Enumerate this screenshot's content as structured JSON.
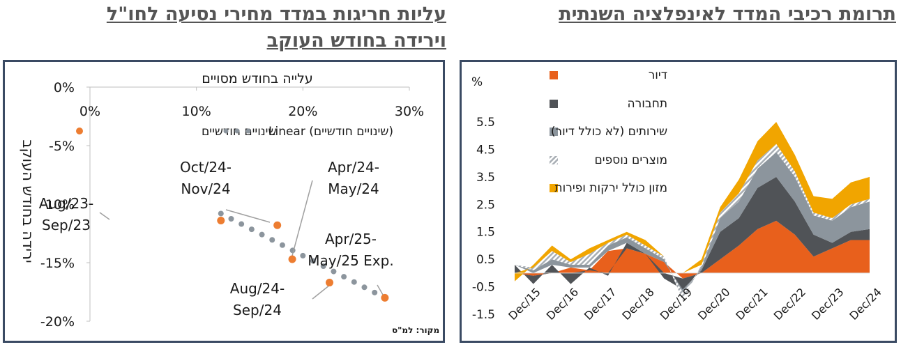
{
  "left_title": "עליות חריגות במדד מחירי  נסיעה לחו\"ל וירידה בחודש העוקב",
  "right_title": "תרומת רכיבי המדד לאינפלציה השנתית",
  "source": "מקור: למ\"ס",
  "chart_data": [
    {
      "type": "scatter",
      "title": "",
      "xlabel": "עלייה בחודש מסויים",
      "ylabel": "ירידה בחודש העוקב",
      "xlim": [
        0,
        30
      ],
      "ylim": [
        -20,
        0
      ],
      "x_ticks": [
        "0%",
        "10%",
        "20%",
        "30%"
      ],
      "x_tick_values": [
        0,
        10,
        20,
        30
      ],
      "y_ticks": [
        "0%",
        "-5%",
        "-10%",
        "-15%",
        "-20%"
      ],
      "y_tick_values": [
        0,
        -5,
        -10,
        -15,
        -20
      ],
      "legend": [
        "שינויים חודשיים",
        "Linear (שינויים חודשיים)"
      ],
      "legend_position": "top",
      "grid": false,
      "colors": {
        "points": "#ed7d31",
        "trend": "#8c959d",
        "leader": "#a0a0a0"
      },
      "points": [
        {
          "x": 12.3,
          "y": -11.4,
          "label": [
            "Aug/23-",
            "Sep/23"
          ]
        },
        {
          "x": 17.6,
          "y": -11.8,
          "label": [
            "Oct/24-",
            "Nov/24"
          ]
        },
        {
          "x": 19.0,
          "y": -14.7,
          "label": [
            "Apr/24-",
            "May/24"
          ]
        },
        {
          "x": 22.5,
          "y": -16.7,
          "label": [
            "Aug/24-",
            "Sep/24"
          ]
        },
        {
          "x": 27.7,
          "y": -18.0,
          "label": [
            "Apr/25-",
            "May/25 Exp."
          ]
        }
      ],
      "trendline": {
        "x_start": 12.3,
        "y_start": -10.8,
        "x_end": 27.7,
        "y_end": -18.0
      }
    },
    {
      "type": "area",
      "title": "",
      "unit_label": "%",
      "ylim": [
        -1.5,
        5.5
      ],
      "y_ticks": [
        "5.5",
        "4.5",
        "3.5",
        "2.5",
        "1.5",
        "0.5",
        "-0.5",
        "-1.5"
      ],
      "y_tick_values": [
        5.5,
        4.5,
        3.5,
        2.5,
        1.5,
        0.5,
        -0.5,
        -1.5
      ],
      "x_ticks": [
        "Dec/15",
        "Dec/16",
        "Dec/17",
        "Dec/18",
        "Dec/19",
        "Dec/20",
        "Dec/21",
        "Dec/22",
        "Dec/23",
        "Dec/24"
      ],
      "legend_position": "top-left",
      "x": [
        "Dec/15",
        "Jun/16",
        "Dec/16",
        "Jun/17",
        "Dec/17",
        "Jun/18",
        "Dec/18",
        "Jun/19",
        "Dec/19",
        "Jun/20",
        "Dec/20",
        "Jun/21",
        "Dec/21",
        "Jun/22",
        "Dec/22",
        "Jun/23",
        "Dec/23",
        "Jun/24",
        "Dec/24",
        "Apr/25"
      ],
      "series": [
        {
          "name": "דיור",
          "color": "#e8601c",
          "values": [
            0.0,
            -0.1,
            0.0,
            0.2,
            0.1,
            0.8,
            0.9,
            0.7,
            0.4,
            -0.2,
            0.0,
            0.5,
            1.0,
            1.6,
            1.9,
            1.4,
            0.6,
            0.9,
            1.2,
            1.2
          ]
        },
        {
          "name": "תחבורה",
          "color": "#505357",
          "values": [
            0.3,
            -0.3,
            0.3,
            -0.4,
            0.1,
            -0.1,
            0.2,
            0.0,
            -0.2,
            -0.4,
            0.1,
            1.0,
            1.0,
            1.5,
            1.6,
            1.2,
            0.8,
            0.2,
            0.3,
            0.4
          ]
        },
        {
          "name": "שירותים (לא כולל דיור)",
          "color": "#8c959d",
          "values": [
            0.0,
            0.1,
            0.2,
            0.1,
            0.1,
            0.2,
            0.2,
            0.2,
            0.1,
            -0.1,
            0.1,
            0.5,
            0.6,
            0.7,
            0.9,
            0.9,
            0.7,
            0.8,
            0.9,
            1.0
          ]
        },
        {
          "name": "מוצרים נוספים",
          "color": "#b8bdc2",
          "values": [
            0.0,
            0.1,
            0.3,
            0.1,
            0.4,
            0.1,
            0.1,
            0.1,
            0.1,
            -0.3,
            0.1,
            0.2,
            0.3,
            0.3,
            0.3,
            0.2,
            0.1,
            0.1,
            0.1,
            0.1
          ]
        },
        {
          "name": "מזון כולל ירקות ופירות",
          "color": "#f1a500",
          "values": [
            -0.3,
            0.1,
            0.2,
            0.1,
            0.2,
            0.1,
            0.1,
            0.2,
            0.0,
            0.0,
            0.2,
            0.2,
            0.5,
            0.7,
            0.8,
            0.6,
            0.6,
            0.7,
            0.8,
            0.8
          ]
        }
      ]
    }
  ]
}
